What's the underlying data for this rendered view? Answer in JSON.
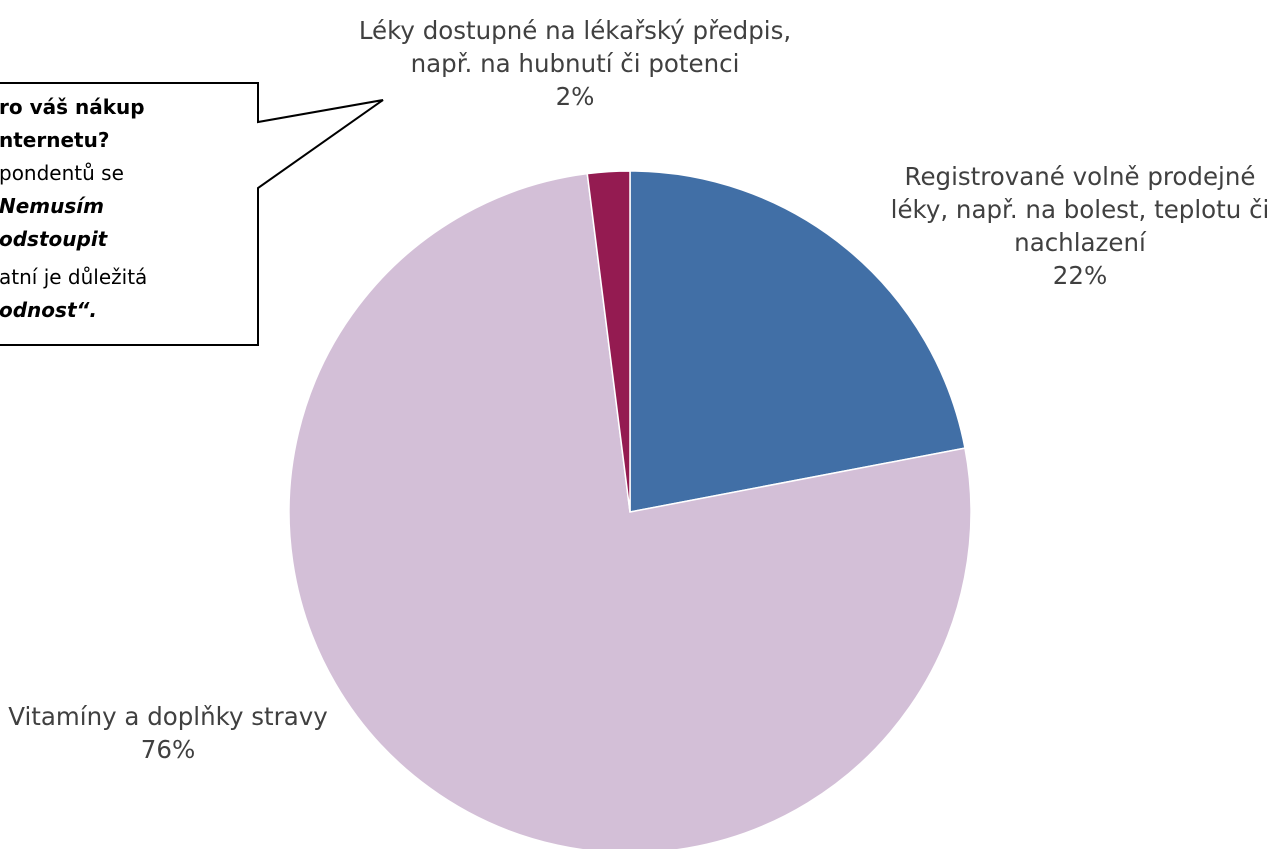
{
  "chart_data": {
    "type": "pie",
    "categories": [
      "Registrované volně prodejné léky, např. na bolest, teplotu či nachlazení",
      "Vitamíny a doplňky stravy",
      "Léky dostupné na lékařský předpis, např. na hubnutí či potenci"
    ],
    "values": [
      22,
      76,
      2
    ],
    "value_labels": [
      "22%",
      "76%",
      "2%"
    ],
    "colors": [
      "#416fa6",
      "#d3bfd7",
      "#941b51"
    ]
  },
  "callout": {
    "lines": [
      "ro váš nákup",
      "nternetu?",
      "pondentů se",
      "Nemusím",
      "odstoupit",
      "atní je důležitá",
      "odnost“."
    ]
  }
}
